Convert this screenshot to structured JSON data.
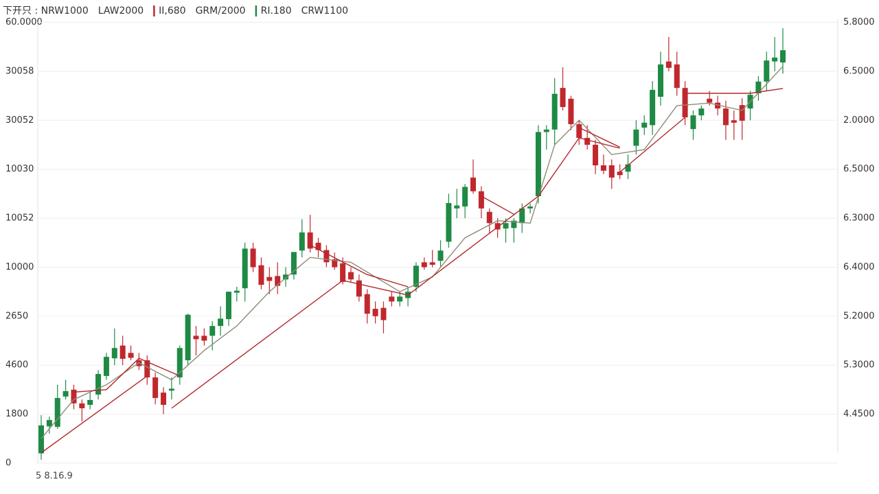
{
  "chart_data": {
    "type": "candlestick",
    "legend": [
      {
        "text": "下开只 : NRW1000",
        "color": "#222222"
      },
      {
        "text": "LAW2000",
        "color": "#c0282d"
      },
      {
        "text": "II,680",
        "color": "#222222",
        "bar": "#c0282d"
      },
      {
        "text": "GRM/2000",
        "color": "#222222"
      },
      {
        "text": "RI.180",
        "color": "#666666",
        "bar": "#1e8a44"
      },
      {
        "text": "CRW1100",
        "color": "#666666"
      }
    ],
    "x_label": "5 8.16.9",
    "ylim": [
      0,
      9
    ],
    "yticks": [
      {
        "value": 0,
        "label": "0"
      },
      {
        "value": 1,
        "label": "1800"
      },
      {
        "value": 2,
        "label": "4600"
      },
      {
        "value": 3,
        "label": "2650"
      },
      {
        "value": 4,
        "label": "10000"
      },
      {
        "value": 5,
        "label": "10052"
      },
      {
        "value": 6,
        "label": "10030"
      },
      {
        "value": 7,
        "label": "30052"
      },
      {
        "value": 8,
        "label": "30058"
      },
      {
        "value": 9,
        "label": "60.0000"
      }
    ],
    "y2lim": [
      0,
      9
    ],
    "y2ticks": [
      {
        "value": 1,
        "label": "4.4500"
      },
      {
        "value": 2,
        "label": "5.3000"
      },
      {
        "value": 3,
        "label": "5.2000"
      },
      {
        "value": 4,
        "label": "6.4000"
      },
      {
        "value": 5,
        "label": "6.3000"
      },
      {
        "value": 6,
        "label": "6.5000"
      },
      {
        "value": 7,
        "label": "2.0000"
      },
      {
        "value": 8,
        "label": "6.5000"
      },
      {
        "value": 9,
        "label": "5.8000"
      }
    ],
    "grid": true,
    "up_color": "#1e8a44",
    "down_color": "#c0282d",
    "ohlc": [
      [
        0.2,
        0.98,
        0.07,
        0.77
      ],
      [
        0.75,
        0.95,
        0.6,
        0.88
      ],
      [
        0.74,
        1.6,
        0.7,
        1.33
      ],
      [
        1.36,
        1.7,
        1.3,
        1.47
      ],
      [
        1.5,
        1.6,
        1.1,
        1.22
      ],
      [
        1.22,
        1.3,
        0.85,
        1.12
      ],
      [
        1.19,
        1.45,
        1.1,
        1.29
      ],
      [
        1.4,
        1.9,
        1.3,
        1.82
      ],
      [
        1.78,
        2.25,
        1.7,
        2.17
      ],
      [
        2.14,
        2.75,
        2.0,
        2.35
      ],
      [
        2.4,
        2.6,
        2.0,
        2.13
      ],
      [
        2.25,
        2.4,
        2.1,
        2.15
      ],
      [
        2.1,
        2.25,
        1.9,
        1.98
      ],
      [
        2.1,
        2.2,
        1.6,
        1.75
      ],
      [
        1.75,
        1.85,
        1.2,
        1.33
      ],
      [
        1.44,
        1.55,
        1.0,
        1.19
      ],
      [
        1.48,
        1.75,
        1.3,
        1.52
      ],
      [
        1.75,
        2.4,
        1.6,
        2.35
      ],
      [
        2.1,
        3.05,
        2.0,
        3.03
      ],
      [
        2.6,
        2.8,
        2.2,
        2.53
      ],
      [
        2.6,
        2.75,
        2.4,
        2.5
      ],
      [
        2.6,
        2.9,
        2.3,
        2.8
      ],
      [
        2.8,
        3.2,
        2.6,
        2.95
      ],
      [
        2.94,
        3.5,
        2.8,
        3.5
      ],
      [
        3.48,
        3.6,
        3.3,
        3.52
      ],
      [
        3.57,
        4.5,
        3.3,
        4.38
      ],
      [
        4.38,
        4.5,
        3.9,
        4.0
      ],
      [
        4.04,
        4.2,
        3.55,
        3.64
      ],
      [
        3.8,
        4.0,
        3.45,
        3.72
      ],
      [
        3.82,
        4.1,
        3.45,
        3.62
      ],
      [
        3.75,
        4.0,
        3.6,
        3.85
      ],
      [
        3.85,
        4.3,
        3.75,
        4.31
      ],
      [
        4.34,
        4.98,
        4.2,
        4.71
      ],
      [
        4.71,
        5.07,
        4.3,
        4.38
      ],
      [
        4.5,
        4.6,
        4.2,
        4.35
      ],
      [
        4.35,
        4.45,
        4.0,
        4.1
      ],
      [
        4.16,
        4.3,
        3.95,
        4.0
      ],
      [
        4.08,
        4.2,
        3.65,
        3.7
      ],
      [
        3.9,
        4.0,
        3.7,
        3.75
      ],
      [
        3.73,
        3.85,
        3.3,
        3.4
      ],
      [
        3.45,
        3.55,
        2.85,
        3.05
      ],
      [
        3.15,
        3.3,
        2.85,
        3.0
      ],
      [
        3.17,
        3.3,
        2.65,
        2.92
      ],
      [
        3.4,
        3.5,
        3.2,
        3.3
      ],
      [
        3.3,
        3.5,
        3.2,
        3.4
      ],
      [
        3.37,
        3.6,
        3.2,
        3.5
      ],
      [
        3.6,
        4.1,
        3.5,
        4.03
      ],
      [
        4.1,
        4.2,
        3.95,
        4.0
      ],
      [
        4.1,
        4.35,
        4.0,
        4.05
      ],
      [
        4.13,
        4.55,
        4.0,
        4.34
      ],
      [
        4.52,
        5.5,
        4.4,
        5.31
      ],
      [
        5.2,
        5.6,
        5.0,
        5.26
      ],
      [
        5.24,
        5.7,
        5.0,
        5.64
      ],
      [
        5.83,
        6.2,
        5.5,
        5.55
      ],
      [
        5.55,
        5.65,
        5.0,
        5.2
      ],
      [
        5.13,
        5.2,
        4.7,
        4.9
      ],
      [
        4.9,
        5.0,
        4.6,
        4.77
      ],
      [
        4.79,
        5.0,
        4.5,
        4.9
      ],
      [
        4.8,
        5.0,
        4.5,
        4.95
      ],
      [
        4.9,
        5.3,
        4.7,
        5.2
      ],
      [
        5.2,
        5.3,
        5.1,
        5.24
      ],
      [
        5.45,
        6.9,
        5.3,
        6.76
      ],
      [
        6.76,
        6.9,
        6.4,
        6.81
      ],
      [
        6.81,
        7.86,
        6.5,
        7.54
      ],
      [
        7.66,
        8.08,
        7.2,
        7.27
      ],
      [
        7.44,
        7.5,
        6.8,
        6.92
      ],
      [
        6.92,
        7.0,
        6.5,
        6.64
      ],
      [
        6.64,
        6.9,
        6.4,
        6.5
      ],
      [
        6.5,
        6.6,
        5.9,
        6.08
      ],
      [
        6.08,
        6.3,
        5.9,
        5.97
      ],
      [
        6.08,
        6.2,
        5.6,
        5.83
      ],
      [
        5.95,
        6.1,
        5.8,
        5.88
      ],
      [
        5.95,
        6.3,
        5.8,
        6.1
      ],
      [
        6.48,
        7.0,
        6.3,
        6.81
      ],
      [
        6.85,
        7.1,
        6.7,
        6.95
      ],
      [
        6.9,
        7.8,
        6.7,
        7.62
      ],
      [
        7.48,
        8.4,
        7.3,
        8.14
      ],
      [
        8.2,
        8.7,
        8.0,
        8.07
      ],
      [
        8.14,
        8.4,
        7.5,
        7.66
      ],
      [
        7.66,
        7.8,
        6.9,
        7.06
      ],
      [
        6.82,
        7.2,
        6.6,
        7.1
      ],
      [
        7.1,
        7.3,
        7.0,
        7.24
      ],
      [
        7.44,
        7.6,
        7.3,
        7.36
      ],
      [
        7.36,
        7.5,
        7.1,
        7.24
      ],
      [
        7.24,
        7.4,
        6.6,
        6.9
      ],
      [
        7.0,
        7.2,
        6.6,
        6.95
      ],
      [
        7.31,
        7.45,
        6.6,
        6.99
      ],
      [
        7.24,
        7.6,
        7.0,
        7.52
      ],
      [
        7.55,
        7.9,
        7.4,
        7.79
      ],
      [
        7.79,
        8.4,
        7.6,
        8.22
      ],
      [
        8.2,
        8.7,
        8.0,
        8.28
      ],
      [
        8.18,
        8.88,
        7.95,
        8.43
      ]
    ],
    "lines": [
      {
        "color": "#8c8c78",
        "x": [
          0,
          4,
          8,
          12,
          16,
          20,
          24,
          28,
          33,
          38,
          44,
          48,
          52,
          56,
          60,
          63,
          66,
          70,
          74,
          78,
          82,
          86,
          91
        ],
        "values": [
          0.5,
          1.3,
          1.6,
          2.05,
          1.7,
          2.3,
          2.8,
          3.5,
          4.2,
          4.1,
          3.5,
          3.8,
          4.6,
          4.95,
          4.9,
          6.5,
          7.0,
          6.3,
          6.4,
          7.3,
          7.35,
          7.2,
          8.1
        ]
      },
      {
        "color": "#b3262b",
        "x": [
          0,
          13,
          null,
          16,
          37,
          45,
          61,
          66,
          71,
          null,
          71,
          79,
          null,
          79,
          87,
          91
        ],
        "values": [
          0.21,
          1.78,
          null,
          1.12,
          3.73,
          3.43,
          5.45,
          6.64,
          6.43,
          null,
          5.94,
          7.06,
          null,
          7.55,
          7.55,
          7.65
        ]
      },
      {
        "color": "#b3262b",
        "x": [
          4,
          8,
          12,
          17,
          null,
          33,
          40,
          45,
          null,
          54,
          58,
          null,
          66,
          71
        ],
        "values": [
          1.45,
          1.5,
          2.14,
          1.78,
          null,
          4.45,
          3.85,
          3.6,
          null,
          5.45,
          5.08,
          null,
          6.85,
          6.45
        ]
      }
    ]
  }
}
